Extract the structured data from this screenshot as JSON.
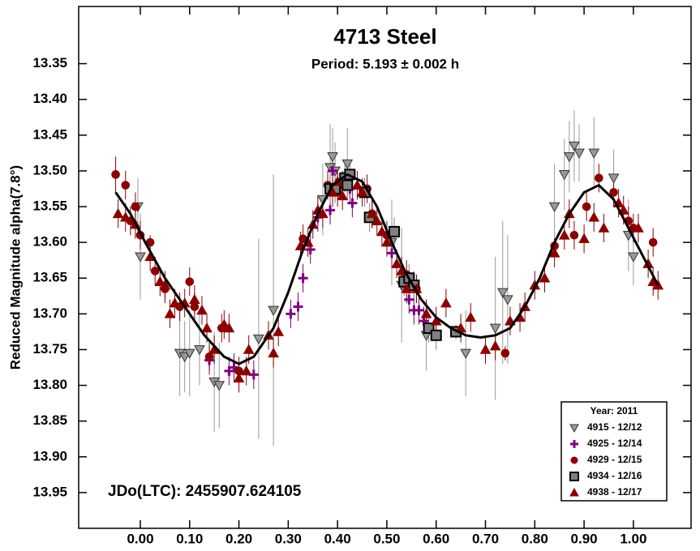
{
  "chart_data": {
    "type": "scatter",
    "title": "4713 Steel",
    "subtitle": "Period: 5.193 ± 0.002 h",
    "y_label": "Reduced Magnitude alpha(7.8°)",
    "annotation": "JDo(LTC): 2455907.624105",
    "legend_title": "Year: 2011",
    "legend_position": "lower right",
    "y_inverted": true,
    "xlim": [
      -0.125,
      1.117
    ],
    "ylim": [
      13.27,
      14.0
    ],
    "xticks": [
      {
        "value": 0,
        "label": "0.00"
      },
      {
        "value": 0.1,
        "label": "0.10"
      },
      {
        "value": 0.2,
        "label": "0.20"
      },
      {
        "value": 0.3,
        "label": "0.30"
      },
      {
        "value": 0.4,
        "label": "0.40"
      },
      {
        "value": 0.5,
        "label": "0.50"
      },
      {
        "value": 0.6,
        "label": "0.60"
      },
      {
        "value": 0.7,
        "label": "0.70"
      },
      {
        "value": 0.8,
        "label": "0.80"
      },
      {
        "value": 0.9,
        "label": "0.90"
      },
      {
        "value": 1,
        "label": "1.00"
      }
    ],
    "yticks": [
      13.35,
      {
        "value": 13.4,
        "label": "13.40"
      },
      13.45,
      {
        "value": 13.5,
        "label": "13.50"
      },
      13.55,
      {
        "value": 13.6,
        "label": "13.60"
      },
      13.65,
      {
        "value": 13.7,
        "label": "13.70"
      },
      13.75,
      {
        "value": 13.8,
        "label": "13.80"
      },
      13.85,
      {
        "value": 13.9,
        "label": "13.90"
      },
      13.95
    ],
    "series": [
      {
        "name": "4915 - 12/12",
        "color": "#999999",
        "marker": "triangle-down",
        "x": [
          -0.005,
          0.0,
          0.08,
          0.09,
          0.1,
          0.12,
          0.15,
          0.16,
          0.24,
          0.27,
          0.37,
          0.385,
          0.39,
          0.395,
          0.42,
          0.51,
          0.53,
          0.58,
          0.66,
          0.72,
          0.735,
          0.745,
          0.84,
          0.86,
          0.87,
          0.88,
          0.89,
          0.92,
          0.96,
          0.99,
          1.0
        ],
        "values": [
          13.55,
          13.62,
          13.755,
          13.76,
          13.755,
          13.75,
          13.795,
          13.8,
          13.735,
          13.695,
          13.54,
          13.495,
          13.48,
          13.5,
          13.49,
          13.6,
          13.66,
          13.73,
          13.755,
          13.72,
          13.67,
          13.68,
          13.55,
          13.505,
          13.48,
          13.465,
          13.475,
          13.475,
          13.51,
          13.59,
          13.62
        ],
        "errors": [
          0.04,
          0.06,
          0.06,
          0.05,
          0.06,
          0.05,
          0.07,
          0.06,
          0.14,
          0.19,
          0.05,
          0.06,
          0.04,
          0.04,
          0.05,
          0.06,
          0.08,
          0.05,
          0.06,
          0.1,
          0.1,
          0.09,
          0.06,
          0.05,
          0.05,
          0.05,
          0.04,
          0.05,
          0.04,
          0.05,
          0.04
        ]
      },
      {
        "name": "4925 - 12/14",
        "color": "#800080",
        "marker": "plus",
        "x": [
          0.14,
          0.18,
          0.19,
          0.23,
          0.305,
          0.32,
          0.33,
          0.345,
          0.36,
          0.385,
          0.39,
          0.4,
          0.425,
          0.43,
          0.51,
          0.545,
          0.555,
          0.565,
          0.575
        ],
        "values": [
          13.765,
          13.78,
          13.775,
          13.785,
          13.7,
          13.69,
          13.65,
          13.61,
          13.565,
          13.555,
          13.5,
          13.52,
          13.525,
          13.545,
          13.615,
          13.68,
          13.695,
          13.695,
          13.71
        ],
        "errors": [
          0.02,
          0.02,
          0.02,
          0.02,
          0.02,
          0.02,
          0.02,
          0.02,
          0.02,
          0.02,
          0.02,
          0.02,
          0.02,
          0.02,
          0.02,
          0.02,
          0.02,
          0.02,
          0.02
        ]
      },
      {
        "name": "4929 - 12/15",
        "color": "#8b0000",
        "marker": "circle",
        "x": [
          -0.05,
          -0.03,
          -0.02,
          -0.01,
          0.0,
          0.02,
          0.03,
          0.05,
          0.08,
          0.1,
          0.11,
          0.14,
          0.165,
          0.2,
          0.33,
          0.38,
          0.4,
          0.41,
          0.46,
          0.47,
          0.5,
          0.54,
          0.56,
          0.74,
          0.84,
          0.88,
          0.905,
          0.93,
          0.96,
          0.99,
          1.0,
          1.04
        ],
        "values": [
          13.505,
          13.52,
          13.57,
          13.55,
          13.59,
          13.6,
          13.64,
          13.665,
          13.69,
          13.655,
          13.69,
          13.76,
          13.72,
          13.78,
          13.595,
          13.52,
          13.53,
          13.52,
          13.525,
          13.56,
          13.59,
          13.645,
          13.665,
          13.755,
          13.605,
          13.59,
          13.55,
          13.51,
          13.53,
          13.57,
          13.58,
          13.6
        ],
        "errors": [
          0.025,
          0.02,
          0.02,
          0.02,
          0.02,
          0.01,
          0.02,
          0.02,
          0.02,
          0.02,
          0.02,
          0.02,
          0.02,
          0.02,
          0.02,
          0.02,
          0.02,
          0.02,
          0.02,
          0.02,
          0.02,
          0.02,
          0.02,
          0.01,
          0.01,
          0.02,
          0.02,
          0.02,
          0.02,
          0.02,
          0.02,
          0.02
        ]
      },
      {
        "name": "4934 - 12/16",
        "color": "#808080",
        "marker": "square",
        "x": [
          0.385,
          0.395,
          0.415,
          0.42,
          0.425,
          0.455,
          0.465,
          0.515,
          0.535,
          0.545,
          0.555,
          0.585,
          0.6,
          0.64
        ],
        "values": [
          13.525,
          13.525,
          13.51,
          13.52,
          13.505,
          13.53,
          13.565,
          13.585,
          13.655,
          13.65,
          13.66,
          13.72,
          13.73,
          13.725
        ],
        "errors": [
          0.02,
          0.02,
          0.02,
          0.02,
          0.02,
          0.02,
          0.02,
          0.02,
          0.02,
          0.02,
          0.02,
          0.02,
          0.02,
          0.01
        ]
      },
      {
        "name": "4938 - 12/17",
        "color": "#8b0000",
        "marker": "triangle-up",
        "x": [
          -0.045,
          -0.03,
          -0.01,
          0.02,
          0.04,
          0.05,
          0.06,
          0.07,
          0.09,
          0.11,
          0.125,
          0.135,
          0.15,
          0.17,
          0.18,
          0.2,
          0.215,
          0.22,
          0.26,
          0.27,
          0.28,
          0.325,
          0.34,
          0.35,
          0.36,
          0.37,
          0.39,
          0.4,
          0.41,
          0.44,
          0.45,
          0.47,
          0.48,
          0.49,
          0.5,
          0.52,
          0.53,
          0.54,
          0.56,
          0.58,
          0.6,
          0.62,
          0.65,
          0.67,
          0.7,
          0.72,
          0.75,
          0.77,
          0.78,
          0.8,
          0.82,
          0.84,
          0.86,
          0.87,
          0.9,
          0.92,
          0.94,
          0.97,
          0.98,
          1.01,
          1.03,
          1.04,
          1.05
        ],
        "values": [
          13.56,
          13.565,
          13.575,
          13.62,
          13.655,
          13.66,
          13.7,
          13.685,
          13.685,
          13.68,
          13.695,
          13.72,
          13.75,
          13.715,
          13.72,
          13.79,
          13.78,
          13.75,
          13.73,
          13.755,
          13.725,
          13.605,
          13.6,
          13.575,
          13.555,
          13.56,
          13.53,
          13.515,
          13.535,
          13.52,
          13.53,
          13.56,
          13.57,
          13.585,
          13.6,
          13.63,
          13.64,
          13.665,
          13.665,
          13.7,
          13.71,
          13.685,
          13.72,
          13.705,
          13.75,
          13.745,
          13.71,
          13.705,
          13.69,
          13.66,
          13.65,
          13.615,
          13.59,
          13.56,
          13.595,
          13.565,
          13.58,
          13.545,
          13.555,
          13.58,
          13.63,
          13.655,
          13.66
        ],
        "errors": [
          0.02,
          0.02,
          0.02,
          0.02,
          0.02,
          0.02,
          0.02,
          0.02,
          0.02,
          0.02,
          0.02,
          0.02,
          0.02,
          0.02,
          0.02,
          0.02,
          0.02,
          0.02,
          0.02,
          0.02,
          0.02,
          0.02,
          0.02,
          0.02,
          0.02,
          0.02,
          0.02,
          0.02,
          0.02,
          0.02,
          0.02,
          0.02,
          0.02,
          0.02,
          0.02,
          0.02,
          0.02,
          0.02,
          0.02,
          0.02,
          0.02,
          0.02,
          0.02,
          0.02,
          0.02,
          0.02,
          0.02,
          0.02,
          0.02,
          0.02,
          0.02,
          0.02,
          0.02,
          0.02,
          0.02,
          0.02,
          0.02,
          0.02,
          0.02,
          0.02,
          0.02,
          0.02,
          0.02
        ]
      }
    ],
    "fit": {
      "color": "#000000",
      "x": [
        -0.05,
        -0.02,
        0.01,
        0.05,
        0.09,
        0.13,
        0.17,
        0.2,
        0.23,
        0.27,
        0.3,
        0.33,
        0.36,
        0.39,
        0.42,
        0.45,
        0.48,
        0.51,
        0.54,
        0.57,
        0.6,
        0.63,
        0.66,
        0.69,
        0.72,
        0.75,
        0.78,
        0.81,
        0.84,
        0.87,
        0.9,
        0.93,
        0.96,
        0.99,
        1.02,
        1.05
      ],
      "values": [
        13.53,
        13.56,
        13.6,
        13.65,
        13.69,
        13.73,
        13.76,
        13.77,
        13.76,
        13.72,
        13.67,
        13.61,
        13.56,
        13.52,
        13.505,
        13.515,
        13.55,
        13.6,
        13.645,
        13.68,
        13.705,
        13.72,
        13.73,
        13.733,
        13.73,
        13.72,
        13.69,
        13.65,
        13.6,
        13.56,
        13.53,
        13.52,
        13.54,
        13.58,
        13.62,
        13.66
      ]
    }
  }
}
